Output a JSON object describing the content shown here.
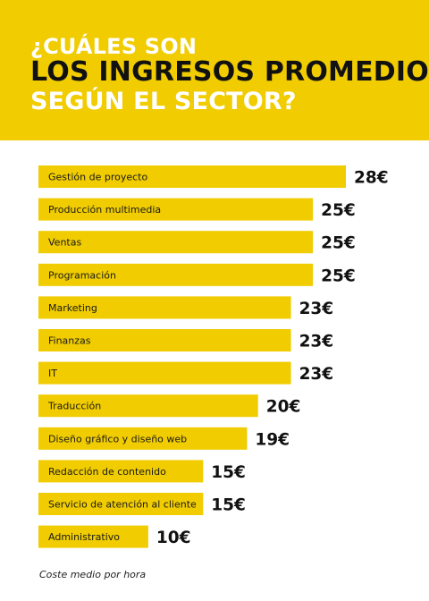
{
  "colors": {
    "accent": "#f0cc00",
    "title_dark": "#111111",
    "title_light": "#ffffff",
    "value_text": "#111111"
  },
  "header": {
    "line1": "¿CUÁLES SON",
    "line2": "LOS INGRESOS PROMEDIO",
    "line3": "SEGÚN EL SECTOR?"
  },
  "chart_data": {
    "type": "bar",
    "orientation": "horizontal",
    "categories": [
      "Gestión de proyecto",
      "Producción multimedia",
      "Ventas",
      "Programación",
      "Marketing",
      "Finanzas",
      "IT",
      "Traducción",
      "Diseño gráfico y diseño web",
      "Redacción de contenido",
      "Servicio de atención al cliente",
      "Administrativo"
    ],
    "values": [
      28,
      25,
      25,
      25,
      23,
      23,
      23,
      20,
      19,
      15,
      15,
      10
    ],
    "value_labels": [
      "28€",
      "25€",
      "25€",
      "25€",
      "23€",
      "23€",
      "23€",
      "20€",
      "19€",
      "15€",
      "15€",
      "10€"
    ],
    "title": "",
    "xlabel": "",
    "ylabel": "",
    "grid": false
  },
  "footnote": "Coste medio por hora"
}
